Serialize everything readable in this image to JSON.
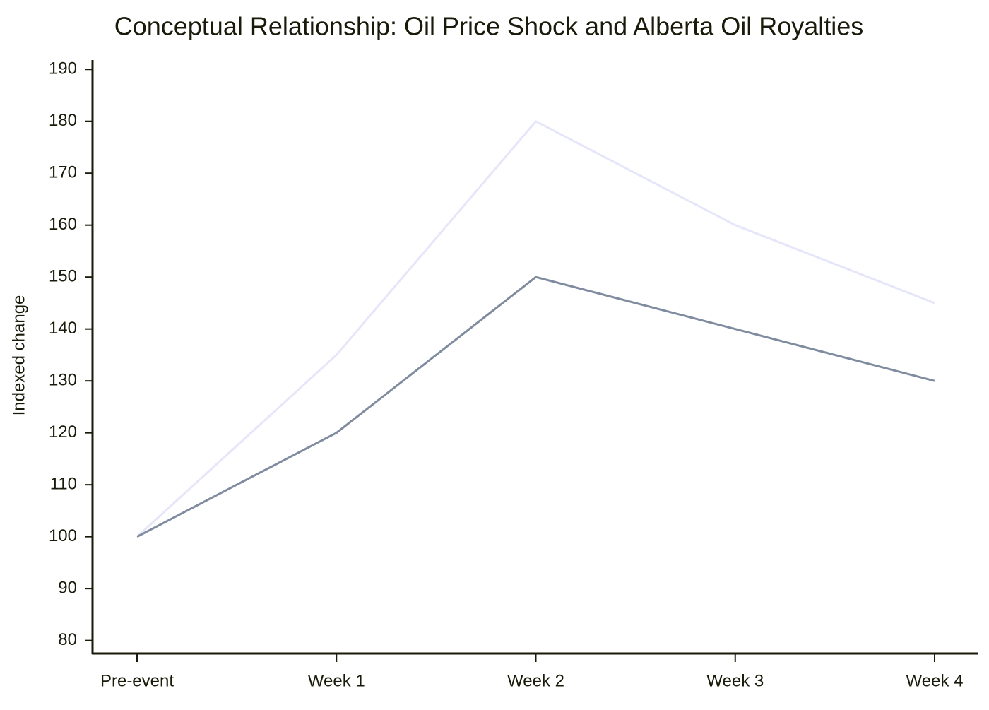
{
  "chart_data": {
    "type": "line",
    "title": "Conceptual Relationship: Oil Price Shock and Alberta Oil Royalties",
    "y_label": "Indexed change",
    "categories": [
      "Pre-event",
      "Week 1",
      "Week 2",
      "Week 3",
      "Week 4"
    ],
    "series": [
      {
        "color": "#e6e6fa",
        "values": [
          100,
          135,
          180,
          160,
          145
        ]
      },
      {
        "color": "#7f8c9f",
        "values": [
          100,
          120,
          150,
          140,
          130
        ]
      }
    ],
    "ylim": [
      77.5,
      191.8
    ],
    "yticks": [
      80,
      90,
      100,
      110,
      120,
      130,
      140,
      150,
      160,
      170,
      180,
      190
    ],
    "grid": false
  }
}
